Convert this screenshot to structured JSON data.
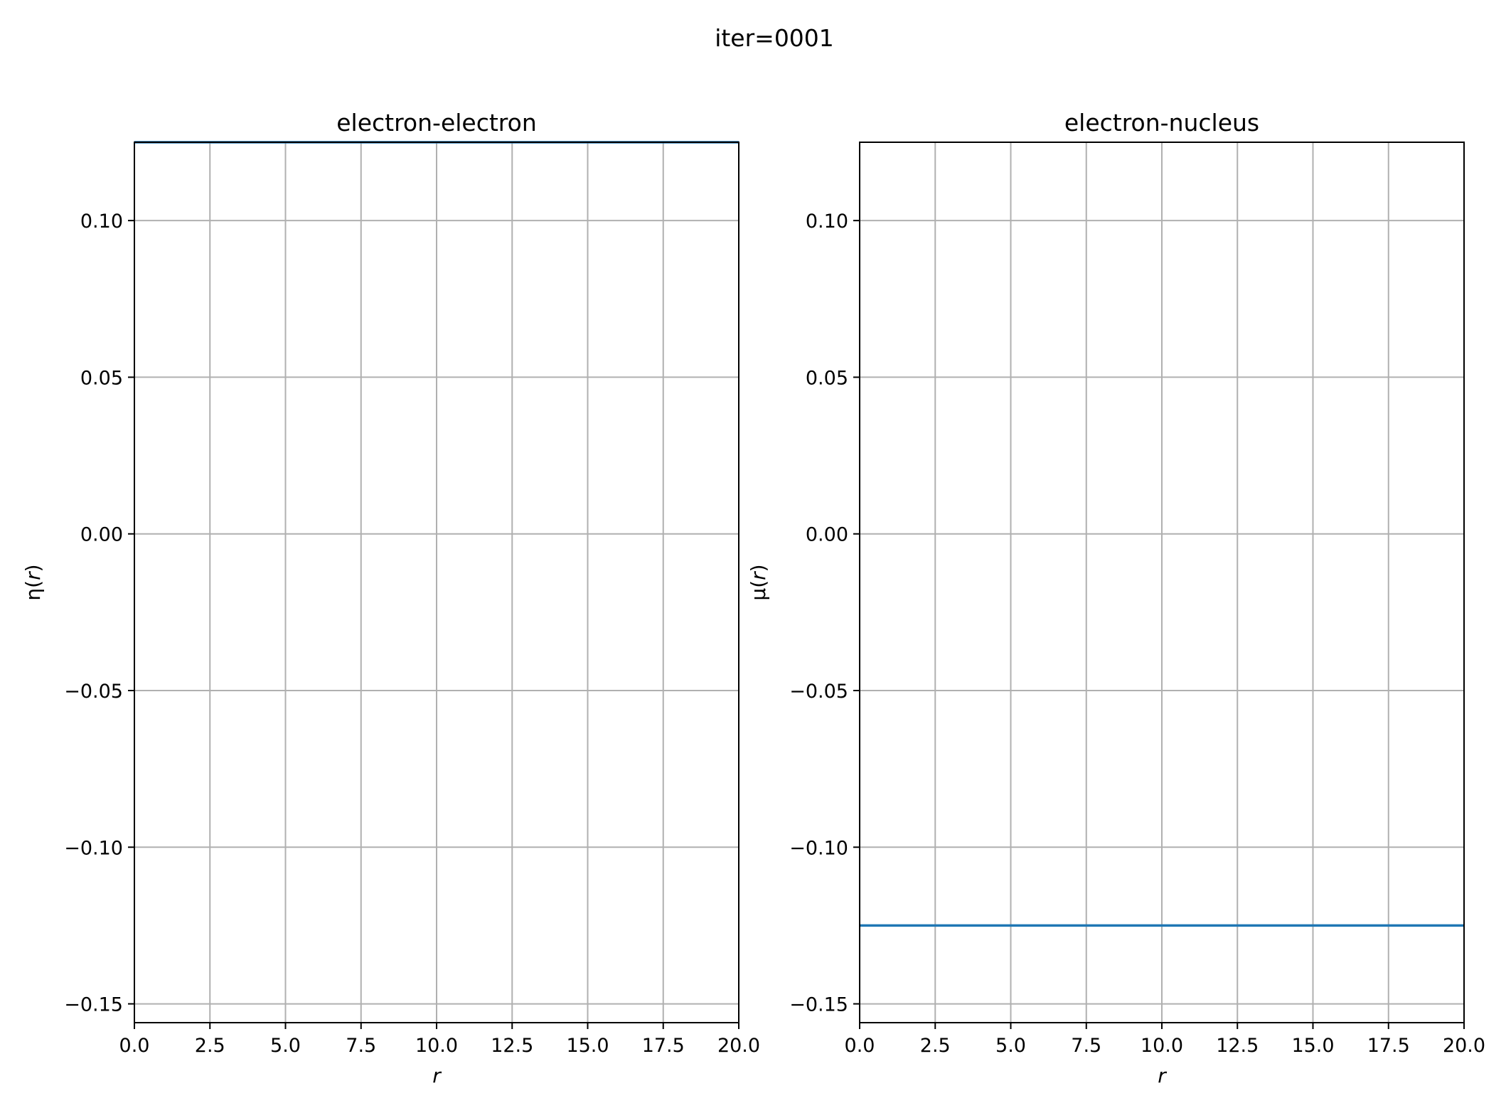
{
  "figure": {
    "suptitle": "iter=0001",
    "background": "#ffffff"
  },
  "chart_data": [
    {
      "type": "line",
      "title": "electron-electron",
      "xlabel": "r",
      "ylabel_symbol": "η",
      "ylabel_arg": "r",
      "xlim": [
        0,
        20
      ],
      "ylim": [
        -0.156,
        0.125
      ],
      "xticks": [
        0,
        2.5,
        5,
        7.5,
        10,
        12.5,
        15,
        17.5,
        20
      ],
      "xtick_labels": [
        "0.0",
        "2.5",
        "5.0",
        "7.5",
        "10.0",
        "12.5",
        "15.0",
        "17.5",
        "20.0"
      ],
      "yticks": [
        0.1,
        0.05,
        0.0,
        -0.05,
        -0.1,
        -0.15
      ],
      "ytick_labels": [
        "0.10",
        "0.05",
        "0.00",
        "−0.05",
        "−0.10",
        "−0.15"
      ],
      "grid": true,
      "series": [
        {
          "x": [
            0,
            20
          ],
          "y": [
            0.125,
            0.125
          ],
          "color": "#1f77b4"
        }
      ]
    },
    {
      "type": "line",
      "title": "electron-nucleus",
      "xlabel": "r",
      "ylabel_symbol": "μ",
      "ylabel_arg": "r",
      "xlim": [
        0,
        20
      ],
      "ylim": [
        -0.156,
        0.125
      ],
      "xticks": [
        0,
        2.5,
        5,
        7.5,
        10,
        12.5,
        15,
        17.5,
        20
      ],
      "xtick_labels": [
        "0.0",
        "2.5",
        "5.0",
        "7.5",
        "10.0",
        "12.5",
        "15.0",
        "17.5",
        "20.0"
      ],
      "yticks": [
        0.1,
        0.05,
        0.0,
        -0.05,
        -0.1,
        -0.15
      ],
      "ytick_labels": [
        "0.10",
        "0.05",
        "0.00",
        "−0.05",
        "−0.10",
        "−0.15"
      ],
      "grid": true,
      "series": [
        {
          "x": [
            0,
            20
          ],
          "y": [
            -0.125,
            -0.125
          ],
          "color": "#1f77b4"
        }
      ]
    }
  ]
}
